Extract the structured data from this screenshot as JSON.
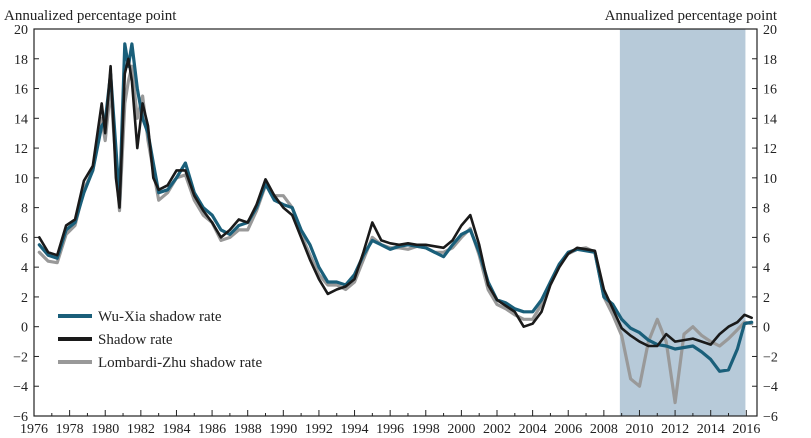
{
  "chart_data": {
    "type": "line",
    "title": "",
    "ylabel_left": "Annualized percentage point",
    "ylabel_right": "Annualized percentage point",
    "xlabel": "",
    "xlim": [
      1976,
      2016.6
    ],
    "ylim": [
      -6,
      20
    ],
    "y_ticks": [
      -6,
      -4,
      -2,
      0,
      2,
      4,
      6,
      8,
      10,
      12,
      14,
      16,
      18,
      20
    ],
    "x_ticks": [
      1976,
      1978,
      1980,
      1982,
      1984,
      1986,
      1988,
      1990,
      1992,
      1994,
      1996,
      1998,
      2000,
      2002,
      2004,
      2006,
      2008,
      2010,
      2012,
      2014,
      2016
    ],
    "grid": false,
    "legend_position": "lower-left",
    "shaded_region": {
      "from": 2008.9,
      "to": 2015.95,
      "color": "#b7cad9"
    },
    "series": [
      {
        "name": "Wu-Xia shadow rate",
        "color": "#1a5f7a",
        "x": [
          1976.3,
          1976.8,
          1977.3,
          1977.8,
          1978.3,
          1978.8,
          1979.3,
          1979.8,
          1980.0,
          1980.3,
          1980.6,
          1980.8,
          1981.1,
          1981.3,
          1981.5,
          1981.8,
          1982.1,
          1982.4,
          1982.7,
          1983.0,
          1983.5,
          1984.0,
          1984.5,
          1985.0,
          1985.5,
          1986.0,
          1986.5,
          1987.0,
          1987.5,
          1988.0,
          1988.5,
          1989.0,
          1989.5,
          1990.0,
          1990.5,
          1991.0,
          1991.5,
          1992.0,
          1992.5,
          1993.0,
          1993.5,
          1994.0,
          1994.5,
          1995.0,
          1995.5,
          1996.0,
          1996.5,
          1997.0,
          1997.5,
          1998.0,
          1998.5,
          1999.0,
          1999.5,
          2000.0,
          2000.5,
          2001.0,
          2001.5,
          2002.0,
          2002.5,
          2003.0,
          2003.5,
          2004.0,
          2004.5,
          2005.0,
          2005.5,
          2006.0,
          2006.5,
          2007.0,
          2007.5,
          2008.0,
          2008.5,
          2009.0,
          2009.5,
          2010.0,
          2010.5,
          2011.0,
          2011.5,
          2012.0,
          2012.5,
          2013.0,
          2013.5,
          2014.0,
          2014.5,
          2015.0,
          2015.5,
          2015.9,
          2016.3
        ],
        "values": [
          5.5,
          4.8,
          4.6,
          6.5,
          7.0,
          9.0,
          10.5,
          13.5,
          13.8,
          17.0,
          12.0,
          8.5,
          19.0,
          17.5,
          19.0,
          16.0,
          14.0,
          13.0,
          11.0,
          9.0,
          9.2,
          10.0,
          11.0,
          9.0,
          8.0,
          7.5,
          6.5,
          6.2,
          6.8,
          7.0,
          8.0,
          9.6,
          8.5,
          8.2,
          8.0,
          6.5,
          5.5,
          4.0,
          3.0,
          3.0,
          2.8,
          3.5,
          4.8,
          5.8,
          5.5,
          5.2,
          5.4,
          5.5,
          5.4,
          5.3,
          5.0,
          4.7,
          5.5,
          6.2,
          6.5,
          5.0,
          3.0,
          1.8,
          1.6,
          1.2,
          1.0,
          1.0,
          1.8,
          3.0,
          4.2,
          5.0,
          5.2,
          5.1,
          5.0,
          2.0,
          1.5,
          0.5,
          -0.1,
          -0.4,
          -0.9,
          -1.2,
          -1.3,
          -1.5,
          -1.4,
          -1.3,
          -1.7,
          -2.2,
          -3.0,
          -2.9,
          -1.5,
          0.2,
          0.3
        ]
      },
      {
        "name": "Shadow rate",
        "color": "#1a1a1a",
        "x": [
          1976.3,
          1976.8,
          1977.3,
          1977.8,
          1978.3,
          1978.8,
          1979.3,
          1979.8,
          1980.0,
          1980.3,
          1980.6,
          1980.8,
          1981.1,
          1981.3,
          1981.5,
          1981.8,
          1982.1,
          1982.4,
          1982.7,
          1983.0,
          1983.5,
          1984.0,
          1984.5,
          1985.0,
          1985.5,
          1986.0,
          1986.5,
          1987.0,
          1987.5,
          1988.0,
          1988.5,
          1989.0,
          1989.5,
          1990.0,
          1990.5,
          1991.0,
          1991.5,
          1992.0,
          1992.5,
          1993.0,
          1993.5,
          1994.0,
          1994.5,
          1995.0,
          1995.5,
          1996.0,
          1996.5,
          1997.0,
          1997.5,
          1998.0,
          1998.5,
          1999.0,
          1999.5,
          2000.0,
          2000.5,
          2001.0,
          2001.5,
          2002.0,
          2002.5,
          2003.0,
          2003.5,
          2004.0,
          2004.5,
          2005.0,
          2005.5,
          2006.0,
          2006.5,
          2007.0,
          2007.5,
          2008.0,
          2008.5,
          2009.0,
          2009.5,
          2010.0,
          2010.5,
          2011.0,
          2011.5,
          2012.0,
          2012.5,
          2013.0,
          2013.5,
          2014.0,
          2014.5,
          2015.0,
          2015.5,
          2015.9,
          2016.3
        ],
        "values": [
          6.0,
          5.0,
          4.8,
          6.8,
          7.2,
          9.8,
          10.8,
          15.0,
          13.0,
          17.5,
          10.0,
          8.0,
          17.0,
          18.0,
          16.5,
          12.0,
          15.0,
          13.5,
          10.0,
          9.2,
          9.5,
          10.5,
          10.5,
          8.8,
          7.8,
          7.0,
          6.0,
          6.5,
          7.2,
          7.0,
          8.2,
          9.9,
          8.8,
          8.0,
          7.5,
          6.0,
          4.5,
          3.2,
          2.2,
          2.5,
          2.7,
          3.2,
          5.0,
          7.0,
          5.8,
          5.6,
          5.5,
          5.6,
          5.5,
          5.5,
          5.4,
          5.3,
          5.8,
          6.8,
          7.5,
          5.5,
          2.8,
          1.8,
          1.4,
          1.0,
          0.0,
          0.2,
          1.0,
          2.8,
          4.0,
          4.9,
          5.3,
          5.2,
          5.1,
          2.5,
          1.2,
          -0.1,
          -0.6,
          -1.0,
          -1.3,
          -1.3,
          -0.5,
          -1.0,
          -0.9,
          -0.8,
          -1.0,
          -1.2,
          -0.5,
          0.0,
          0.3,
          0.8,
          0.6
        ]
      },
      {
        "name": "Lombardi-Zhu shadow rate",
        "color": "#999999",
        "x": [
          1976.3,
          1976.8,
          1977.3,
          1977.8,
          1978.3,
          1978.8,
          1979.3,
          1979.8,
          1980.0,
          1980.3,
          1980.6,
          1980.8,
          1981.1,
          1981.3,
          1981.5,
          1981.8,
          1982.1,
          1982.4,
          1982.7,
          1983.0,
          1983.5,
          1984.0,
          1984.5,
          1985.0,
          1985.5,
          1986.0,
          1986.5,
          1987.0,
          1987.5,
          1988.0,
          1988.5,
          1989.0,
          1989.5,
          1990.0,
          1990.5,
          1991.0,
          1991.5,
          1992.0,
          1992.5,
          1993.0,
          1993.5,
          1994.0,
          1994.5,
          1995.0,
          1995.5,
          1996.0,
          1996.5,
          1997.0,
          1997.5,
          1998.0,
          1998.5,
          1999.0,
          1999.5,
          2000.0,
          2000.5,
          2001.0,
          2001.5,
          2002.0,
          2002.5,
          2003.0,
          2003.5,
          2004.0,
          2004.5,
          2005.0,
          2005.5,
          2006.0,
          2006.5,
          2007.0,
          2007.5,
          2008.0,
          2008.5,
          2009.0,
          2009.5,
          2010.0,
          2010.5,
          2011.0,
          2011.5,
          2012.0,
          2012.5,
          2013.0,
          2013.5,
          2014.0,
          2014.5,
          2015.0,
          2015.5,
          2015.9,
          2016.3
        ],
        "values": [
          5.0,
          4.4,
          4.3,
          6.2,
          6.8,
          9.2,
          10.5,
          14.0,
          12.5,
          16.0,
          11.0,
          7.8,
          15.0,
          16.5,
          17.5,
          14.0,
          15.5,
          12.5,
          10.5,
          8.5,
          9.0,
          10.0,
          10.2,
          8.5,
          7.5,
          7.0,
          5.8,
          6.0,
          6.5,
          6.5,
          7.8,
          9.5,
          8.8,
          8.8,
          8.0,
          6.2,
          4.8,
          3.5,
          2.8,
          2.8,
          2.5,
          3.0,
          4.5,
          6.0,
          5.5,
          5.3,
          5.3,
          5.2,
          5.4,
          5.3,
          5.0,
          5.0,
          5.3,
          6.0,
          6.6,
          4.8,
          2.5,
          1.5,
          1.2,
          0.8,
          0.5,
          0.5,
          1.5,
          3.0,
          4.2,
          4.9,
          5.2,
          5.3,
          5.0,
          2.0,
          0.8,
          -0.6,
          -3.5,
          -4.0,
          -1.0,
          0.5,
          -1.0,
          -5.1,
          -0.5,
          0.0,
          -0.6,
          -1.0,
          -1.3,
          -0.8,
          -0.2,
          0.3,
          0.2
        ]
      }
    ]
  }
}
